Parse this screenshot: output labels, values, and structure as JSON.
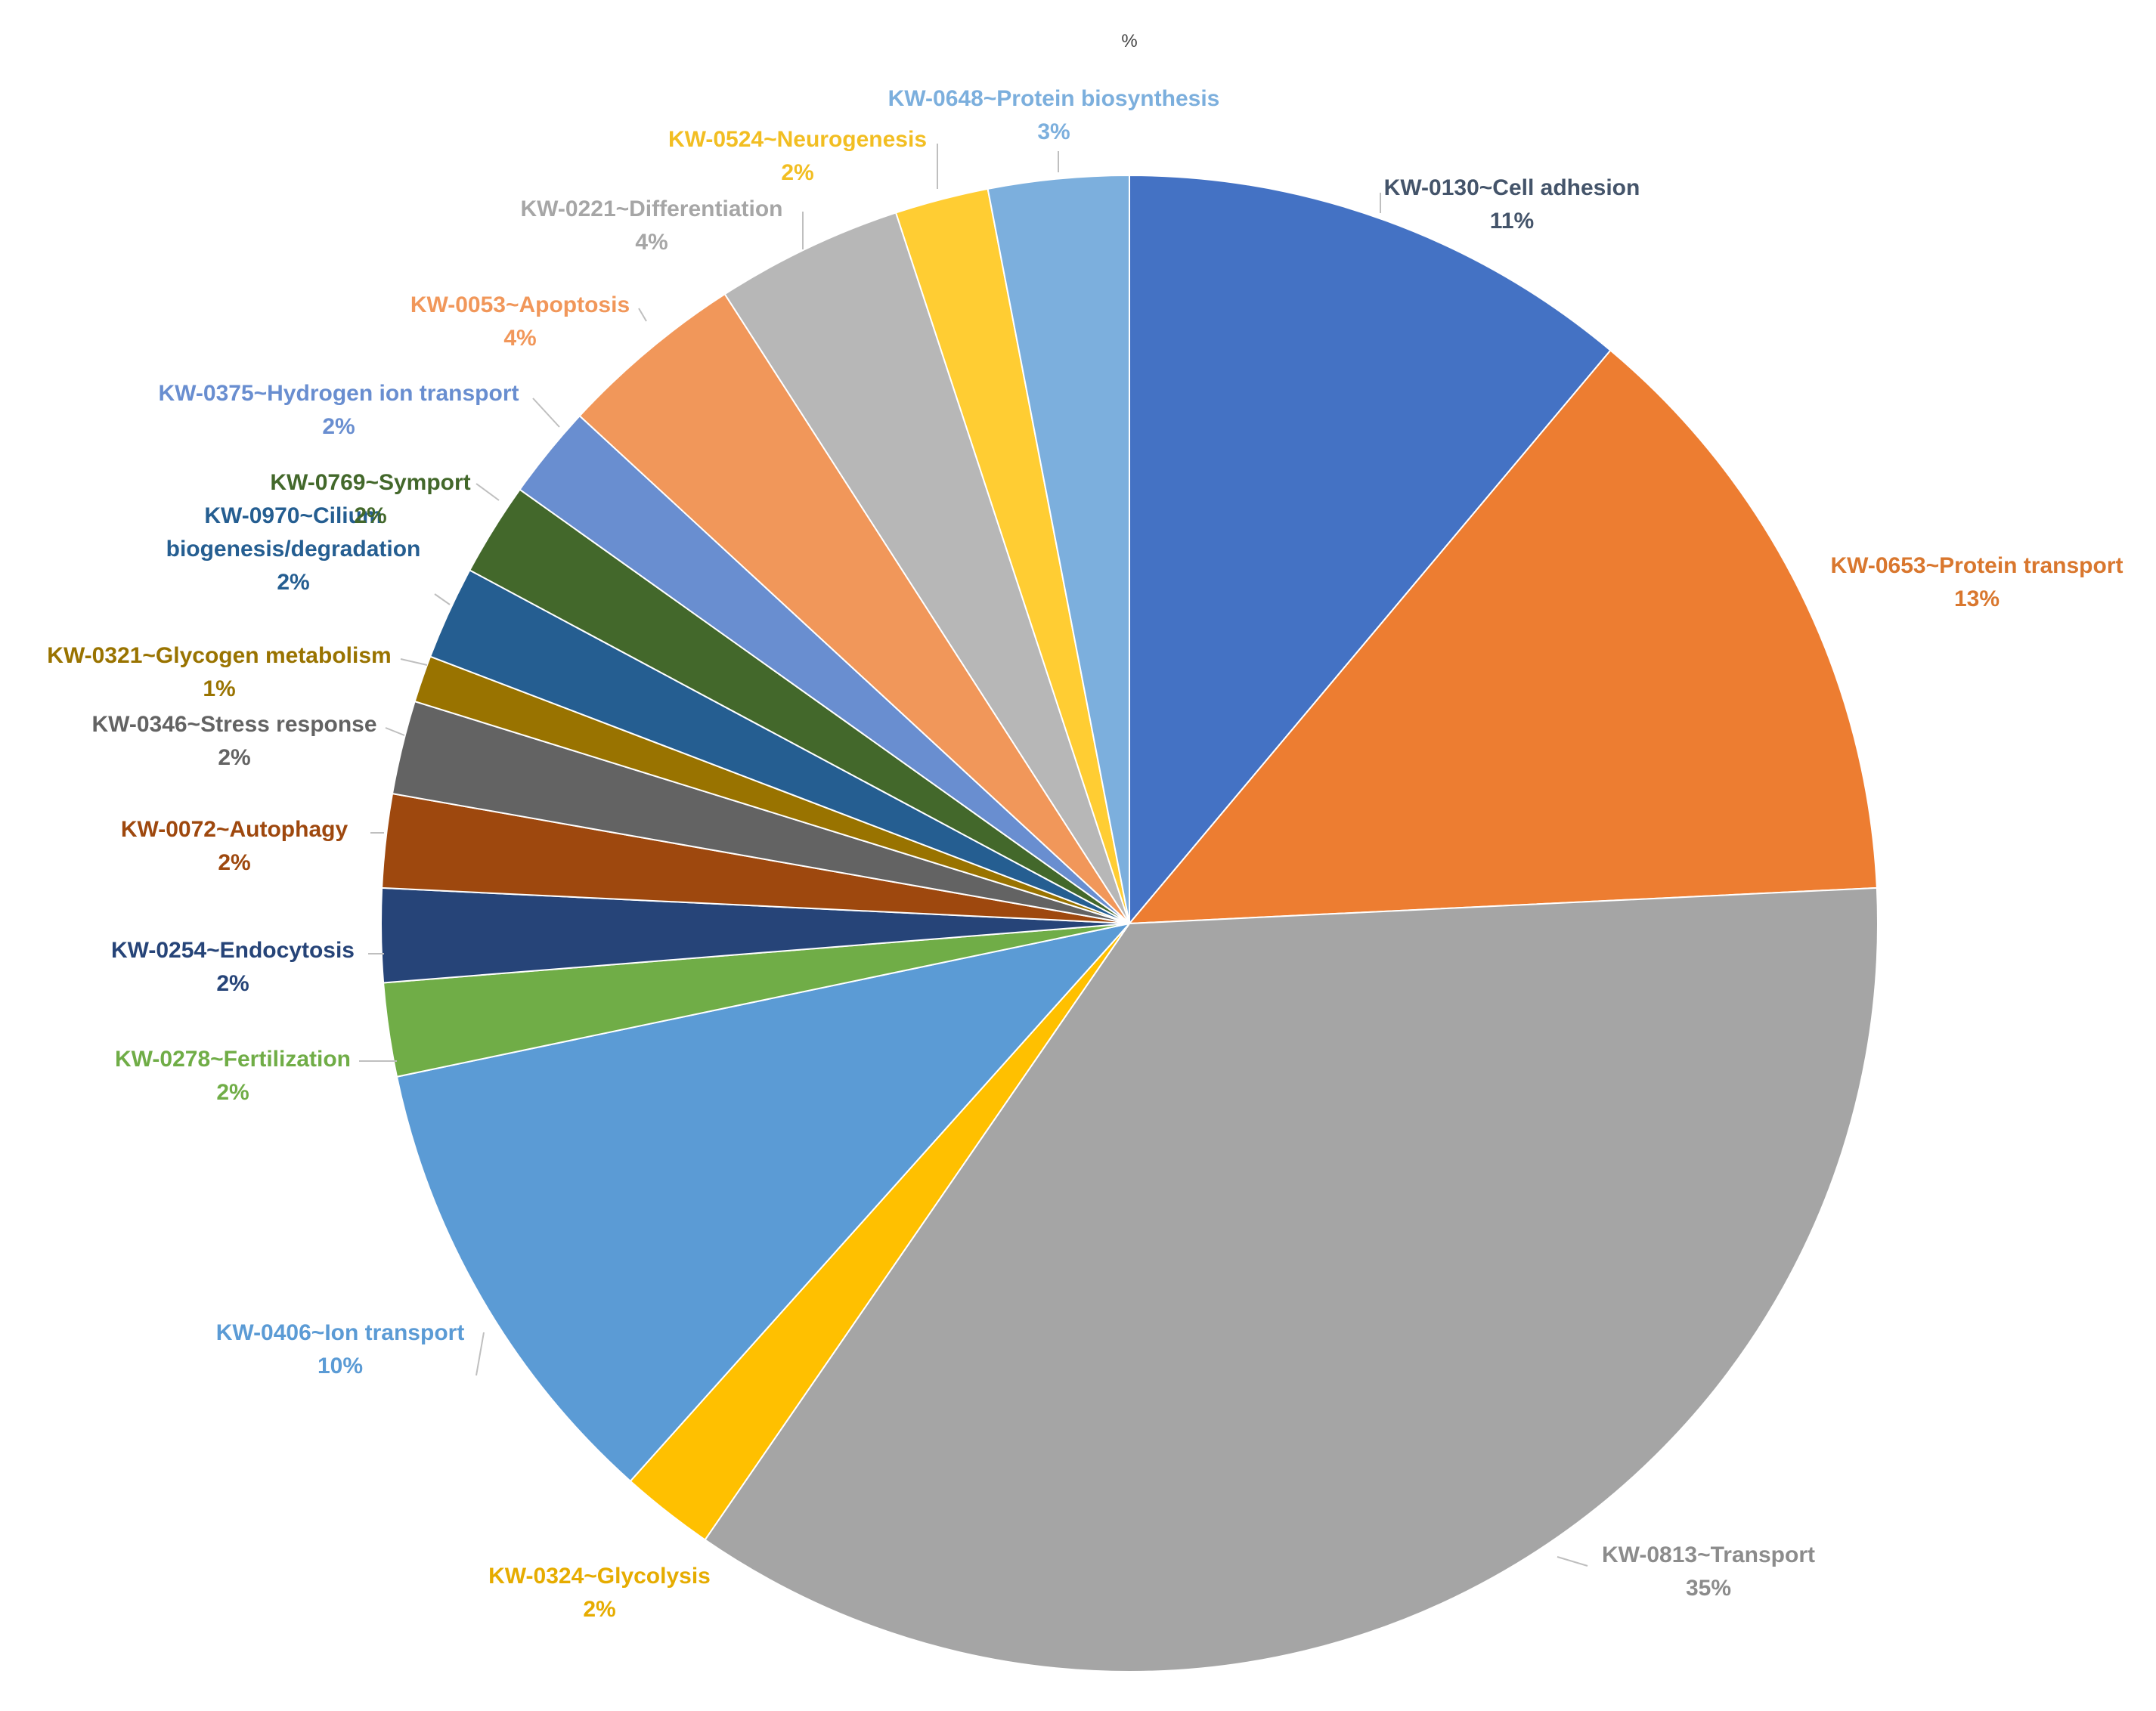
{
  "chart_data": {
    "type": "pie",
    "title": "%",
    "start": "12 o'clock, clockwise",
    "slices": [
      {
        "label": "KW-0130~Cell adhesion",
        "value_label": "11%",
        "value": 11,
        "color": "#4472C4",
        "label_color": "#44546A"
      },
      {
        "label": "KW-0653~Protein transport",
        "value_label": "13%",
        "value": 13,
        "color": "#ED7D31",
        "label_color": "#D9772E"
      },
      {
        "label": "KW-0813~Transport",
        "value_label": "35%",
        "value": 35,
        "color": "#A5A5A5",
        "label_color": "#8C8C8C"
      },
      {
        "label": "KW-0324~Glycolysis",
        "value_label": "2%",
        "value": 2,
        "color": "#FFC000",
        "label_color": "#E6AC00"
      },
      {
        "label": "KW-0406~Ion transport",
        "value_label": "10%",
        "value": 10,
        "color": "#5B9BD5",
        "label_color": "#5B9BD5"
      },
      {
        "label": "KW-0278~Fertilization",
        "value_label": "2%",
        "value": 2,
        "color": "#70AD47",
        "label_color": "#70AD47"
      },
      {
        "label": "KW-0254~Endocytosis",
        "value_label": "2%",
        "value": 2,
        "color": "#264478",
        "label_color": "#264478"
      },
      {
        "label": "KW-0072~Autophagy",
        "value_label": "2%",
        "value": 2,
        "color": "#9E480E",
        "label_color": "#9E480E"
      },
      {
        "label": "KW-0346~Stress response",
        "value_label": "2%",
        "value": 2,
        "color": "#636363",
        "label_color": "#636363"
      },
      {
        "label": "KW-0321~Glycogen metabolism",
        "value_label": "1%",
        "value": 1,
        "color": "#997300",
        "label_color": "#997300"
      },
      {
        "label": "KW-0970~Cilium biogenesis/degradation",
        "label_lines": [
          "KW-0970~Cilium",
          "biogenesis/degradation"
        ],
        "value_label": "2%",
        "value": 2,
        "color": "#255E91",
        "label_color": "#255E91"
      },
      {
        "label": "KW-0769~Symport",
        "value_label": "2%",
        "value": 2,
        "color": "#43682B",
        "label_color": "#43682B"
      },
      {
        "label": "KW-0375~Hydrogen ion transport",
        "value_label": "2%",
        "value": 2,
        "color": "#698ED0",
        "label_color": "#698ED0"
      },
      {
        "label": "KW-0053~Apoptosis",
        "value_label": "4%",
        "value": 4,
        "color": "#F1975A",
        "label_color": "#F1975A"
      },
      {
        "label": "KW-0221~Differentiation",
        "value_label": "4%",
        "value": 4,
        "color": "#B7B7B7",
        "label_color": "#A6A6A6"
      },
      {
        "label": "KW-0524~Neurogenesis",
        "value_label": "2%",
        "value": 2,
        "color": "#FFCD33",
        "label_color": "#F2BE22"
      },
      {
        "label": "KW-0648~Protein biosynthesis",
        "value_label": "3%",
        "value": 3,
        "color": "#7CAFDD",
        "label_color": "#7CAFDD"
      }
    ]
  }
}
